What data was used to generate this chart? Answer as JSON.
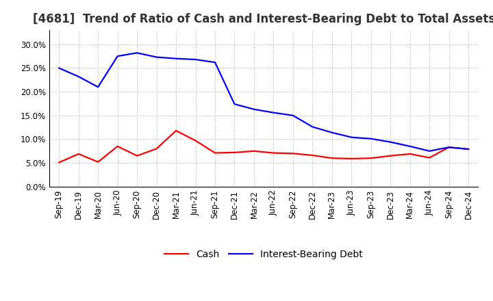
{
  "title": "[4681]  Trend of Ratio of Cash and Interest-Bearing Debt to Total Assets",
  "x_labels": [
    "Sep-19",
    "Dec-19",
    "Mar-20",
    "Jun-20",
    "Sep-20",
    "Dec-20",
    "Mar-21",
    "Jun-21",
    "Sep-21",
    "Dec-21",
    "Mar-22",
    "Jun-22",
    "Sep-22",
    "Dec-22",
    "Mar-23",
    "Jun-23",
    "Sep-23",
    "Dec-23",
    "Mar-24",
    "Jun-24",
    "Sep-24",
    "Dec-24"
  ],
  "cash": [
    0.051,
    0.069,
    0.052,
    0.085,
    0.065,
    0.08,
    0.118,
    0.097,
    0.071,
    0.072,
    0.075,
    0.071,
    0.07,
    0.066,
    0.06,
    0.059,
    0.06,
    0.065,
    0.069,
    0.061,
    0.083,
    0.079
  ],
  "ibd": [
    0.25,
    0.232,
    0.21,
    0.275,
    0.282,
    0.273,
    0.27,
    0.268,
    0.262,
    0.174,
    0.163,
    0.156,
    0.15,
    0.126,
    0.114,
    0.104,
    0.101,
    0.094,
    0.085,
    0.075,
    0.083,
    0.079
  ],
  "cash_color": "#ff0000",
  "ibd_color": "#0000ff",
  "background_color": "#ffffff",
  "plot_bg_color": "#ffffff",
  "grid_color": "#aaaaaa",
  "ylim": [
    0.0,
    0.33
  ],
  "yticks": [
    0.0,
    0.05,
    0.1,
    0.15,
    0.2,
    0.25,
    0.3
  ],
  "legend_cash": "Cash",
  "legend_ibd": "Interest-Bearing Debt",
  "title_fontsize": 12,
  "axis_fontsize": 8.5,
  "legend_fontsize": 10,
  "line_width": 1.6
}
